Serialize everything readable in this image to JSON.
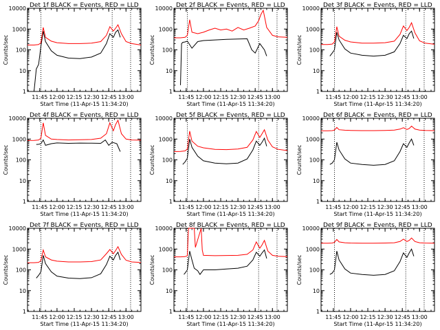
{
  "xtick_labels": [
    "11:45",
    "12:00",
    "12:15",
    "12:30",
    "12:45",
    "13:00"
  ],
  "xlabel": "Start Time (11-Apr-15 11:34:20)",
  "ylabel": "Counts/sec",
  "ytick_labels": [
    "1",
    "10",
    "100",
    "1000",
    "10000"
  ],
  "colors": {
    "events": "#000000",
    "lld": "#ff0000"
  },
  "chart_data": [
    {
      "type": "line",
      "title": "Det 1f BLACK = Events, RED = LLD",
      "xlim": [
        "11:34:20",
        "13:13"
      ],
      "ylim": [
        1,
        10000
      ],
      "yscale": "log",
      "vlines": [
        "11:46",
        "12:48",
        "13:04"
      ],
      "series": [
        {
          "role": "events",
          "x": [
            "11:39",
            "11:40",
            "11:42",
            "11:44",
            "11:46",
            "11:48",
            "11:50",
            "11:55",
            "12:00",
            "12:10",
            "12:20",
            "12:30",
            "12:38",
            "12:43",
            "12:46",
            "12:49",
            "12:51",
            "12:53",
            "12:55"
          ],
          "y": [
            1,
            1,
            12,
            20,
            150,
            800,
            250,
            90,
            55,
            40,
            38,
            45,
            70,
            200,
            600,
            400,
            700,
            900,
            400
          ]
        },
        {
          "role": "lld",
          "x": [
            "11:34:20",
            "11:40",
            "11:44",
            "11:46",
            "11:48",
            "11:50",
            "11:55",
            "12:00",
            "12:10",
            "12:20",
            "12:30",
            "12:38",
            "12:43",
            "12:46",
            "12:49",
            "12:51",
            "12:53",
            "12:56",
            "13:00",
            "13:05",
            "13:13"
          ],
          "y": [
            170,
            170,
            180,
            220,
            1200,
            400,
            260,
            220,
            200,
            200,
            210,
            250,
            500,
            1300,
            800,
            1100,
            1600,
            600,
            250,
            200,
            170
          ]
        }
      ]
    },
    {
      "type": "line",
      "title": "Det 2f BLACK = Events, RED = LLD",
      "xlim": [
        "11:34:20",
        "13:13"
      ],
      "ylim": [
        1,
        10000
      ],
      "yscale": "log",
      "vlines": [
        "11:46",
        "12:48",
        "13:04"
      ],
      "series": [
        {
          "role": "events",
          "x": [
            "11:40",
            "11:41",
            "11:42",
            "11:44",
            "11:46",
            "11:50",
            "11:55",
            "12:00",
            "12:10",
            "12:20",
            "12:30",
            "12:38",
            "12:42",
            "12:45",
            "12:49",
            "12:53",
            "12:55"
          ],
          "y": [
            2,
            200,
            230,
            240,
            260,
            120,
            250,
            280,
            300,
            320,
            330,
            340,
            100,
            70,
            200,
            100,
            50
          ]
        },
        {
          "role": "lld",
          "x": [
            "11:34:20",
            "11:40",
            "11:44",
            "11:46",
            "11:48",
            "11:50",
            "11:55",
            "12:00",
            "12:05",
            "12:10",
            "12:15",
            "12:20",
            "12:25",
            "12:30",
            "12:35",
            "12:40",
            "12:45",
            "12:48",
            "12:50",
            "12:52",
            "12:55",
            "13:00",
            "13:05",
            "13:13"
          ],
          "y": [
            380,
            380,
            400,
            500,
            2800,
            700,
            600,
            700,
            900,
            1100,
            900,
            1000,
            800,
            1200,
            900,
            1100,
            1400,
            2500,
            5000,
            8000,
            1200,
            500,
            420,
            400
          ]
        }
      ]
    },
    {
      "type": "line",
      "title": "Det 3f BLACK = Events, RED = LLD",
      "xlim": [
        "11:34:20",
        "13:13"
      ],
      "ylim": [
        1,
        10000
      ],
      "yscale": "log",
      "vlines": [
        "11:46",
        "12:48",
        "13:04"
      ],
      "series": [
        {
          "role": "events",
          "x": [
            "11:42",
            "11:44",
            "11:46",
            "11:48",
            "11:50",
            "11:55",
            "12:00",
            "12:10",
            "12:20",
            "12:30",
            "12:38",
            "12:43",
            "12:46",
            "12:49",
            "12:51",
            "12:53",
            "12:55"
          ],
          "y": [
            50,
            70,
            100,
            700,
            300,
            110,
            70,
            55,
            50,
            55,
            80,
            200,
            500,
            350,
            600,
            800,
            350
          ]
        },
        {
          "role": "lld",
          "x": [
            "11:34:20",
            "11:40",
            "11:44",
            "11:46",
            "11:48",
            "11:50",
            "11:55",
            "12:00",
            "12:10",
            "12:20",
            "12:30",
            "12:38",
            "12:43",
            "12:46",
            "12:49",
            "12:51",
            "12:53",
            "12:56",
            "13:00",
            "13:05",
            "13:13"
          ],
          "y": [
            180,
            180,
            190,
            240,
            1300,
            450,
            290,
            240,
            210,
            210,
            220,
            260,
            550,
            1400,
            850,
            1200,
            2000,
            650,
            270,
            210,
            185
          ]
        }
      ]
    },
    {
      "type": "line",
      "title": "Det 4f BLACK = Events, RED = LLD",
      "xlim": [
        "11:34:20",
        "13:13"
      ],
      "ylim": [
        1,
        10000
      ],
      "yscale": "log",
      "vlines": [
        "11:46",
        "12:48",
        "13:04"
      ],
      "series": [
        {
          "role": "events",
          "x": [
            "11:42",
            "11:44",
            "11:46",
            "11:48",
            "11:50",
            "11:55",
            "12:00",
            "12:10",
            "12:20",
            "12:30",
            "12:38",
            "12:42",
            "12:45",
            "12:48",
            "12:52",
            "12:55"
          ],
          "y": [
            550,
            560,
            600,
            900,
            500,
            600,
            650,
            620,
            640,
            630,
            620,
            900,
            500,
            700,
            600,
            250
          ]
        },
        {
          "role": "lld",
          "x": [
            "11:34:20",
            "11:40",
            "11:44",
            "11:46",
            "11:48",
            "11:50",
            "11:55",
            "12:00",
            "12:10",
            "12:20",
            "12:30",
            "12:38",
            "12:43",
            "12:46",
            "12:49",
            "12:51",
            "12:53",
            "12:56",
            "13:00",
            "13:05",
            "13:13"
          ],
          "y": [
            850,
            860,
            900,
            1100,
            6000,
            1500,
            1000,
            950,
            900,
            920,
            950,
            1100,
            1800,
            6000,
            2500,
            5000,
            8000,
            1800,
            1000,
            900,
            880
          ]
        }
      ]
    },
    {
      "type": "line",
      "title": "Det 5f BLACK = Events, RED = LLD",
      "xlim": [
        "11:34:20",
        "13:13"
      ],
      "ylim": [
        1,
        10000
      ],
      "yscale": "log",
      "vlines": [
        "11:46",
        "12:48",
        "13:04"
      ],
      "series": [
        {
          "role": "events",
          "x": [
            "11:42",
            "11:44",
            "11:46",
            "11:48",
            "11:50",
            "11:55",
            "12:00",
            "12:10",
            "12:20",
            "12:30",
            "12:38",
            "12:43",
            "12:46",
            "12:49",
            "12:51",
            "12:53",
            "12:55"
          ],
          "y": [
            60,
            80,
            120,
            1000,
            400,
            150,
            90,
            70,
            65,
            70,
            110,
            300,
            800,
            500,
            700,
            1100,
            450
          ]
        },
        {
          "role": "lld",
          "x": [
            "11:34:20",
            "11:40",
            "11:44",
            "11:46",
            "11:48",
            "11:50",
            "11:55",
            "12:00",
            "12:10",
            "12:20",
            "12:30",
            "12:38",
            "12:43",
            "12:46",
            "12:49",
            "12:51",
            "12:53",
            "12:56",
            "13:00",
            "13:05",
            "13:13"
          ],
          "y": [
            250,
            255,
            270,
            330,
            2400,
            800,
            450,
            380,
            320,
            310,
            330,
            400,
            900,
            2300,
            1200,
            1800,
            2800,
            900,
            420,
            320,
            280
          ]
        }
      ]
    },
    {
      "type": "line",
      "title": "Det 6f BLACK = Events, RED = LLD",
      "xlim": [
        "11:34:20",
        "13:13"
      ],
      "ylim": [
        1,
        10000
      ],
      "yscale": "log",
      "vlines": [
        "11:46",
        "12:48",
        "13:04"
      ],
      "series": [
        {
          "role": "events",
          "x": [
            "11:42",
            "11:44",
            "11:46",
            "11:48",
            "11:50",
            "11:55",
            "12:00",
            "12:10",
            "12:20",
            "12:30",
            "12:38",
            "12:43",
            "12:46",
            "12:49",
            "12:51",
            "12:53",
            "12:55"
          ],
          "y": [
            60,
            70,
            100,
            700,
            300,
            110,
            70,
            60,
            55,
            60,
            90,
            250,
            600,
            400,
            650,
            1000,
            500
          ]
        },
        {
          "role": "lld",
          "x": [
            "11:34:20",
            "11:40",
            "11:44",
            "11:46",
            "11:48",
            "11:50",
            "11:55",
            "12:00",
            "12:10",
            "12:20",
            "12:30",
            "12:38",
            "12:43",
            "12:46",
            "12:49",
            "12:51",
            "12:53",
            "12:56",
            "13:00",
            "13:05",
            "13:13"
          ],
          "y": [
            2500,
            2500,
            2550,
            2700,
            3600,
            2800,
            2650,
            2600,
            2550,
            2550,
            2600,
            2700,
            3000,
            3500,
            2900,
            3200,
            4200,
            3000,
            2700,
            2600,
            2550
          ]
        }
      ]
    },
    {
      "type": "line",
      "title": "Det 7f BLACK = Events, RED = LLD",
      "xlim": [
        "11:34:20",
        "13:13"
      ],
      "ylim": [
        1,
        10000
      ],
      "yscale": "log",
      "vlines": [
        "11:46",
        "12:48",
        "13:04"
      ],
      "series": [
        {
          "role": "events",
          "x": [
            "11:42",
            "11:44",
            "11:46",
            "11:48",
            "11:50",
            "11:55",
            "12:00",
            "12:10",
            "12:20",
            "12:30",
            "12:38",
            "12:43",
            "12:46",
            "12:49",
            "12:51",
            "12:53",
            "12:55"
          ],
          "y": [
            40,
            55,
            80,
            500,
            200,
            80,
            50,
            40,
            38,
            42,
            65,
            180,
            450,
            300,
            500,
            700,
            300
          ]
        },
        {
          "role": "lld",
          "x": [
            "11:34:20",
            "11:40",
            "11:44",
            "11:46",
            "11:48",
            "11:50",
            "11:55",
            "12:00",
            "12:10",
            "12:20",
            "12:30",
            "12:38",
            "12:43",
            "12:46",
            "12:49",
            "12:51",
            "12:53",
            "12:56",
            "13:00",
            "13:05",
            "13:13"
          ],
          "y": [
            220,
            220,
            230,
            280,
            900,
            420,
            300,
            260,
            240,
            240,
            250,
            300,
            600,
            950,
            600,
            850,
            1300,
            550,
            290,
            240,
            225
          ]
        }
      ]
    },
    {
      "type": "line",
      "title": "Det 8f BLACK = Events, RED = LLD",
      "xlim": [
        "11:34:20",
        "13:13"
      ],
      "ylim": [
        1,
        10000
      ],
      "yscale": "log",
      "vlines": [
        "11:46",
        "12:48",
        "13:04"
      ],
      "series": [
        {
          "role": "events",
          "x": [
            "11:43",
            "11:44",
            "11:46",
            "11:48",
            "11:50",
            "11:52",
            "11:55",
            "11:57",
            "12:00",
            "12:10",
            "12:20",
            "12:30",
            "12:38",
            "12:43",
            "12:46",
            "12:49",
            "12:51",
            "12:53",
            "12:55"
          ],
          "y": [
            60,
            70,
            100,
            800,
            300,
            120,
            90,
            60,
            100,
            100,
            110,
            120,
            150,
            300,
            700,
            450,
            650,
            900,
            350
          ]
        },
        {
          "role": "lld",
          "x": [
            "11:34:20",
            "11:40",
            "11:44",
            "11:46",
            "11:47",
            "11:52",
            "11:53",
            "11:58",
            "11:59",
            "12:00",
            "12:10",
            "12:20",
            "12:30",
            "12:38",
            "12:43",
            "12:46",
            "12:49",
            "12:51",
            "12:53",
            "12:56",
            "13:00",
            "13:05",
            "13:13"
          ],
          "y": [
            420,
            420,
            430,
            480,
            10000,
            10000,
            1200,
            10000,
            900,
            500,
            480,
            490,
            500,
            560,
            900,
            2200,
            1100,
            1600,
            2600,
            800,
            500,
            450,
            430
          ]
        }
      ]
    },
    {
      "type": "line",
      "title": "Det 9f BLACK = Events, RED = LLD",
      "xlim": [
        "11:34:20",
        "13:13"
      ],
      "ylim": [
        1,
        10000
      ],
      "yscale": "log",
      "vlines": [
        "11:46",
        "12:48",
        "13:04"
      ],
      "series": [
        {
          "role": "events",
          "x": [
            "11:42",
            "11:44",
            "11:46",
            "11:48",
            "11:50",
            "11:55",
            "12:00",
            "12:10",
            "12:20",
            "12:30",
            "12:38",
            "12:43",
            "12:46",
            "12:49",
            "12:51",
            "12:53",
            "12:55"
          ],
          "y": [
            60,
            70,
            100,
            800,
            300,
            110,
            70,
            60,
            55,
            60,
            90,
            250,
            650,
            400,
            650,
            1000,
            450
          ]
        },
        {
          "role": "lld",
          "x": [
            "11:34:20",
            "11:40",
            "11:44",
            "11:46",
            "11:48",
            "11:50",
            "11:55",
            "12:00",
            "12:10",
            "12:20",
            "12:30",
            "12:38",
            "12:43",
            "12:46",
            "12:49",
            "12:51",
            "12:53",
            "12:56",
            "13:00",
            "13:05",
            "13:13"
          ],
          "y": [
            1900,
            1900,
            1950,
            2100,
            2900,
            2200,
            2000,
            1950,
            1900,
            1900,
            1950,
            2000,
            2300,
            3000,
            2300,
            2600,
            3400,
            2300,
            2000,
            1950,
            1900
          ]
        }
      ]
    }
  ]
}
